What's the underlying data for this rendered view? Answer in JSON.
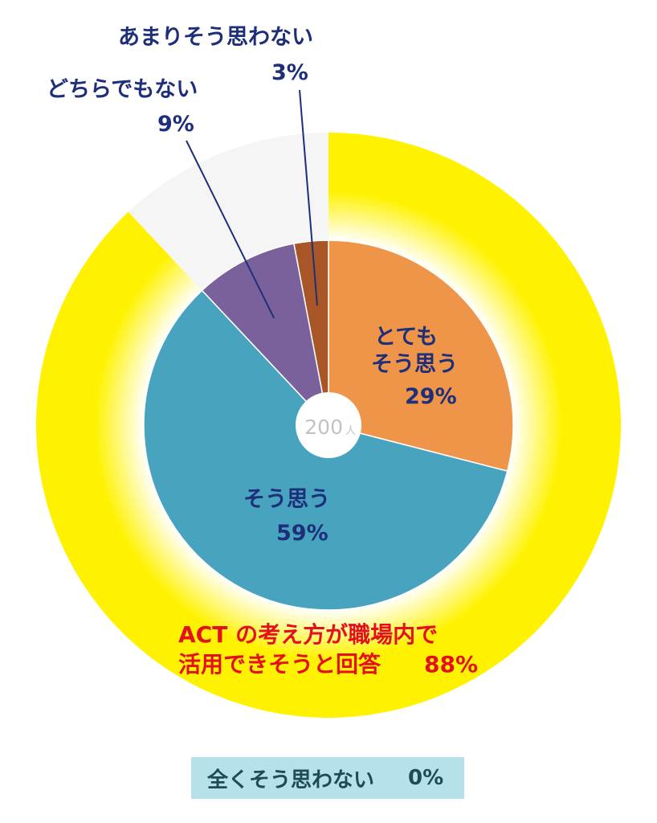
{
  "chart_data": {
    "type": "pie",
    "center_label": {
      "value": "200",
      "unit": "人"
    },
    "slices": [
      {
        "label_lines": [
          "とても",
          "そう思う"
        ],
        "value": 29,
        "value_text": "29%",
        "color": "#ee9549"
      },
      {
        "label_lines": [
          "そう思う"
        ],
        "value": 59,
        "value_text": "59%",
        "color": "#47a3be"
      },
      {
        "label_lines": [
          "どちらでもない"
        ],
        "value": 9,
        "value_text": "9%",
        "color": "#7a619c"
      },
      {
        "label_lines": [
          "あまりそう思わない"
        ],
        "value": 3,
        "value_text": "3%",
        "color": "#a85627"
      },
      {
        "label_lines": [
          "全くそう思わない"
        ],
        "value": 0,
        "value_text": "0%",
        "color": "#b6e0ea"
      }
    ],
    "outer_ring": {
      "value": 88,
      "color": "#fff200",
      "rest_color": "#f5f5f5",
      "label_lines": [
        "ACT の考え方が職場内で",
        "活用できそうと回答"
      ],
      "value_text": "88%"
    }
  }
}
